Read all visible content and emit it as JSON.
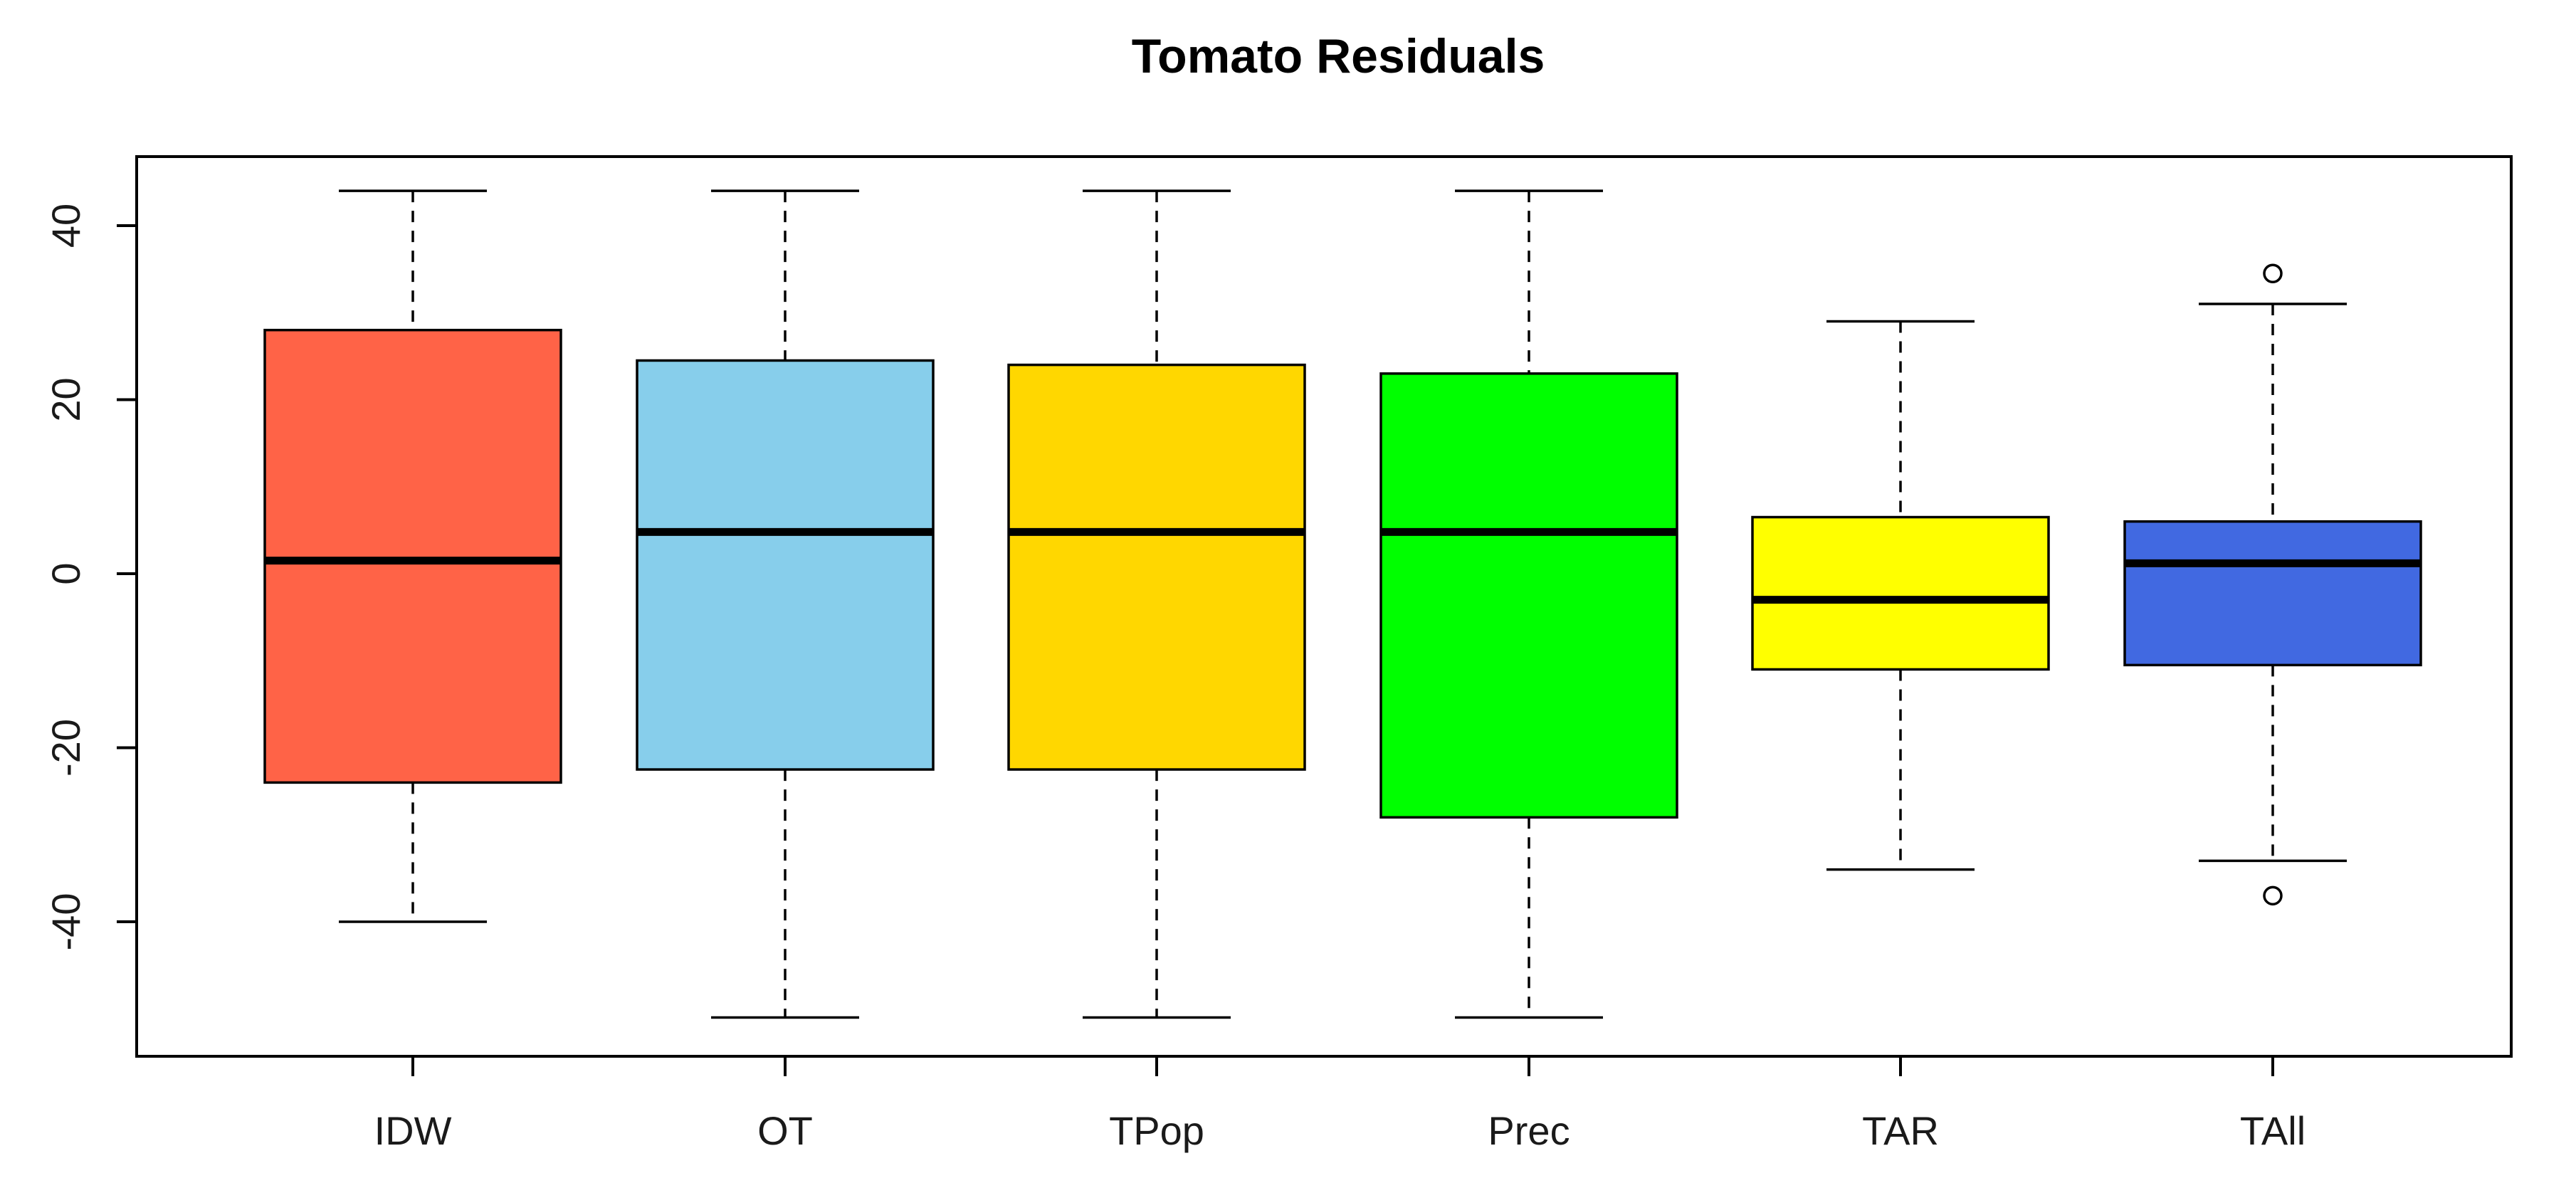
{
  "chart_data": {
    "type": "boxplot",
    "title": "Tomato Residuals",
    "xlabel": "",
    "ylabel": "",
    "ylim": [
      -55,
      48
    ],
    "yticks": [
      -40,
      -20,
      0,
      20,
      40
    ],
    "grid": false,
    "legend": "none",
    "categories": [
      "IDW",
      "OT",
      "TPop",
      "Prec",
      "TAR",
      "TAll"
    ],
    "boxes": [
      {
        "name": "IDW",
        "whisker_low": -40,
        "q1": -24,
        "median": 1.5,
        "q3": 28,
        "whisker_high": 44,
        "outliers": [],
        "color": "#ff6347"
      },
      {
        "name": "OT",
        "whisker_low": -51,
        "q1": -22.5,
        "median": 4.8,
        "q3": 24.5,
        "whisker_high": 44,
        "outliers": [],
        "color": "#87ceeb"
      },
      {
        "name": "TPop",
        "whisker_low": -51,
        "q1": -22.5,
        "median": 4.8,
        "q3": 24,
        "whisker_high": 44,
        "outliers": [],
        "color": "#ffd700"
      },
      {
        "name": "Prec",
        "whisker_low": -51,
        "q1": -28,
        "median": 4.8,
        "q3": 23,
        "whisker_high": 44,
        "outliers": [],
        "color": "#00ff00"
      },
      {
        "name": "TAR",
        "whisker_low": -34,
        "q1": -11,
        "median": -3,
        "q3": 6.5,
        "whisker_high": 29,
        "outliers": [],
        "color": "#ffff00"
      },
      {
        "name": "TAll",
        "whisker_low": -33,
        "q1": -10.5,
        "median": 1.2,
        "q3": 6,
        "whisker_high": 31,
        "outliers": [
          34.5,
          -37
        ],
        "color": "#4169e1"
      }
    ]
  }
}
